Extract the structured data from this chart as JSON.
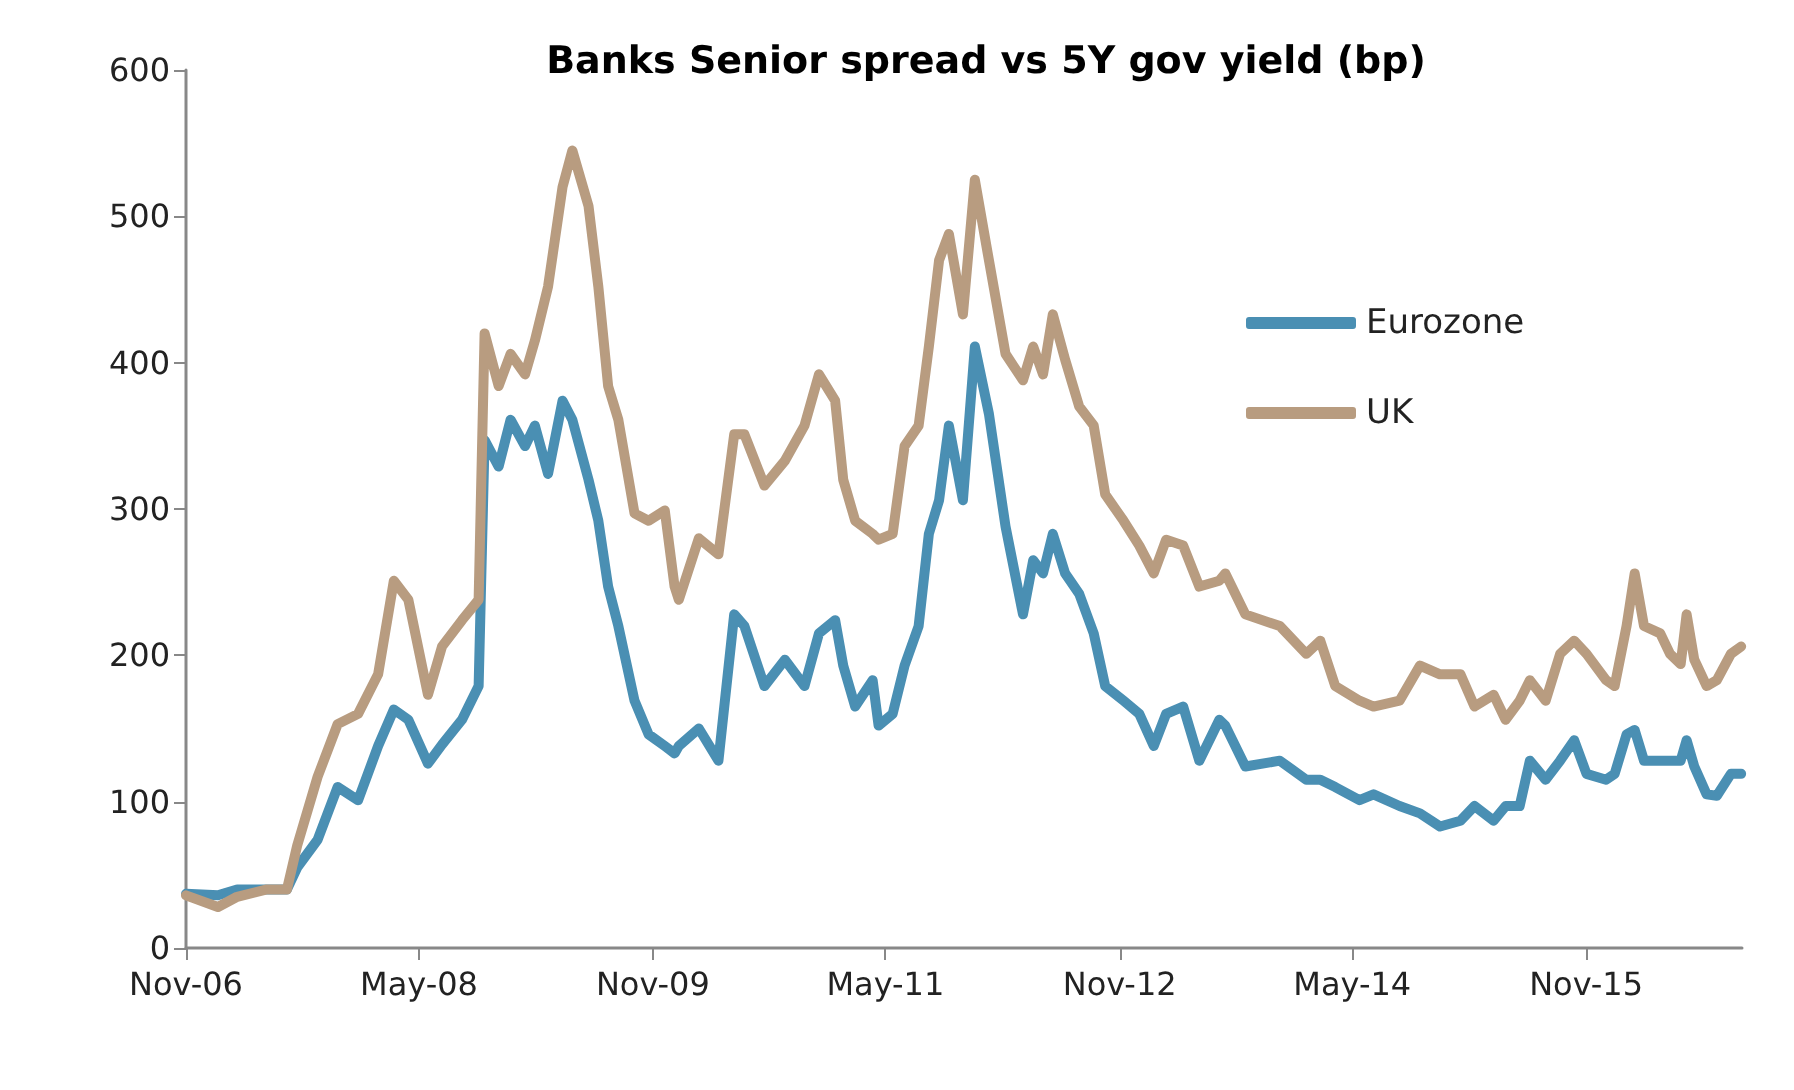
{
  "chart_data": {
    "type": "line",
    "title": "Banks Senior spread vs 5Y gov yield (bp)",
    "x": [
      "2006-11-01",
      "2007-01-15",
      "2007-03-01",
      "2007-05-10",
      "2007-06-26",
      "2007-07-20",
      "2007-09-06",
      "2007-10-23",
      "2007-12-10",
      "2008-01-26",
      "2008-03-03",
      "2008-04-06",
      "2008-05-22",
      "2008-06-24",
      "2008-08-10",
      "2008-09-18",
      "2008-10-02",
      "2008-11-04",
      "2008-12-02",
      "2009-01-05",
      "2009-01-28",
      "2009-02-28",
      "2009-04-03",
      "2009-04-26",
      "2009-06-03",
      "2009-06-26",
      "2009-07-19",
      "2009-08-12",
      "2009-09-19",
      "2009-10-22",
      "2009-11-29",
      "2009-12-22",
      "2010-01-01",
      "2010-02-17",
      "2010-04-04",
      "2010-05-11",
      "2010-06-04",
      "2010-07-21",
      "2010-09-07",
      "2010-10-23",
      "2010-11-26",
      "2011-01-03",
      "2011-01-22",
      "2011-02-19",
      "2011-04-01",
      "2011-04-15",
      "2011-05-18",
      "2011-06-15",
      "2011-07-18",
      "2011-08-11",
      "2011-09-04",
      "2011-09-27",
      "2011-10-30",
      "2011-11-27",
      "2011-12-30",
      "2012-02-07",
      "2012-03-19",
      "2012-04-12",
      "2012-05-05",
      "2012-05-28",
      "2012-06-26",
      "2012-07-29",
      "2012-09-01",
      "2012-09-28",
      "2012-11-10",
      "2012-12-17",
      "2013-01-20",
      "2013-02-18",
      "2013-03-30",
      "2013-05-07",
      "2013-06-23",
      "2013-07-07",
      "2013-08-23",
      "2013-11-12",
      "2014-01-13",
      "2014-02-15",
      "2014-03-22",
      "2014-05-18",
      "2014-06-20",
      "2014-08-20",
      "2014-10-07",
      "2014-11-23",
      "2015-01-10",
      "2015-02-12",
      "2015-03-29",
      "2015-04-26",
      "2015-05-29",
      "2015-06-22",
      "2015-07-29",
      "2015-09-01",
      "2015-10-04",
      "2015-11-02",
      "2015-12-18",
      "2016-01-07",
      "2016-02-04",
      "2016-02-23",
      "2016-03-16",
      "2016-04-23",
      "2016-05-16",
      "2016-06-10",
      "2016-06-24",
      "2016-07-12",
      "2016-08-10",
      "2016-09-03",
      "2016-10-06",
      "2016-10-30"
    ],
    "series": [
      {
        "name": "Eurozone",
        "color": "#4a8fb3",
        "values": [
          37,
          36,
          40,
          40,
          40,
          55,
          74,
          110,
          101,
          138,
          163,
          156,
          126,
          139,
          156,
          179,
          347,
          329,
          361,
          343,
          357,
          324,
          374,
          361,
          320,
          292,
          247,
          220,
          169,
          146,
          138,
          133,
          138,
          150,
          128,
          228,
          220,
          179,
          197,
          179,
          215,
          224,
          193,
          165,
          183,
          152,
          160,
          193,
          220,
          283,
          306,
          357,
          306,
          411,
          365,
          288,
          228,
          265,
          256,
          283,
          256,
          242,
          215,
          179,
          169,
          160,
          138,
          160,
          165,
          128,
          156,
          152,
          124,
          128,
          115,
          115,
          110,
          101,
          105,
          97,
          92,
          83,
          87,
          97,
          87,
          97,
          97,
          128,
          115,
          128,
          142,
          119,
          115,
          119,
          146,
          149,
          128,
          128,
          128,
          128,
          142,
          124,
          105,
          104,
          119,
          119
        ]
      },
      {
        "name": "UK",
        "color": "#b89c80",
        "values": [
          36,
          28,
          35,
          40,
          40,
          70,
          117,
          153,
          160,
          187,
          251,
          238,
          173,
          206,
          224,
          238,
          420,
          384,
          406,
          392,
          415,
          452,
          520,
          545,
          507,
          452,
          384,
          361,
          297,
          292,
          299,
          247,
          238,
          280,
          269,
          351,
          351,
          316,
          333,
          357,
          392,
          374,
          320,
          292,
          283,
          279,
          283,
          343,
          357,
          411,
          470,
          488,
          433,
          525,
          470,
          406,
          388,
          411,
          392,
          433,
          402,
          370,
          357,
          310,
          292,
          275,
          256,
          279,
          275,
          247,
          251,
          256,
          228,
          220,
          201,
          210,
          179,
          169,
          165,
          169,
          193,
          187,
          187,
          165,
          173,
          156,
          169,
          183,
          169,
          201,
          210,
          201,
          183,
          179,
          220,
          256,
          220,
          215,
          201,
          194,
          228,
          197,
          179,
          183,
          201,
          206
        ]
      }
    ],
    "xlim": [
      "2006-11-01",
      "2016-11-01"
    ],
    "xticks": [
      {
        "value": "2006-11-01",
        "label": "Nov-06"
      },
      {
        "value": "2008-05-01",
        "label": "May-08"
      },
      {
        "value": "2009-11-01",
        "label": "Nov-09"
      },
      {
        "value": "2011-05-01",
        "label": "May-11"
      },
      {
        "value": "2012-11-01",
        "label": "Nov-12"
      },
      {
        "value": "2014-05-01",
        "label": "May-14"
      },
      {
        "value": "2015-11-01",
        "label": "Nov-15"
      }
    ],
    "ylim": [
      0,
      600
    ],
    "yticks": [
      0,
      100,
      200,
      300,
      400,
      500,
      600
    ],
    "grid": false,
    "legend": "right",
    "marker": "none",
    "line_style": "solid"
  }
}
